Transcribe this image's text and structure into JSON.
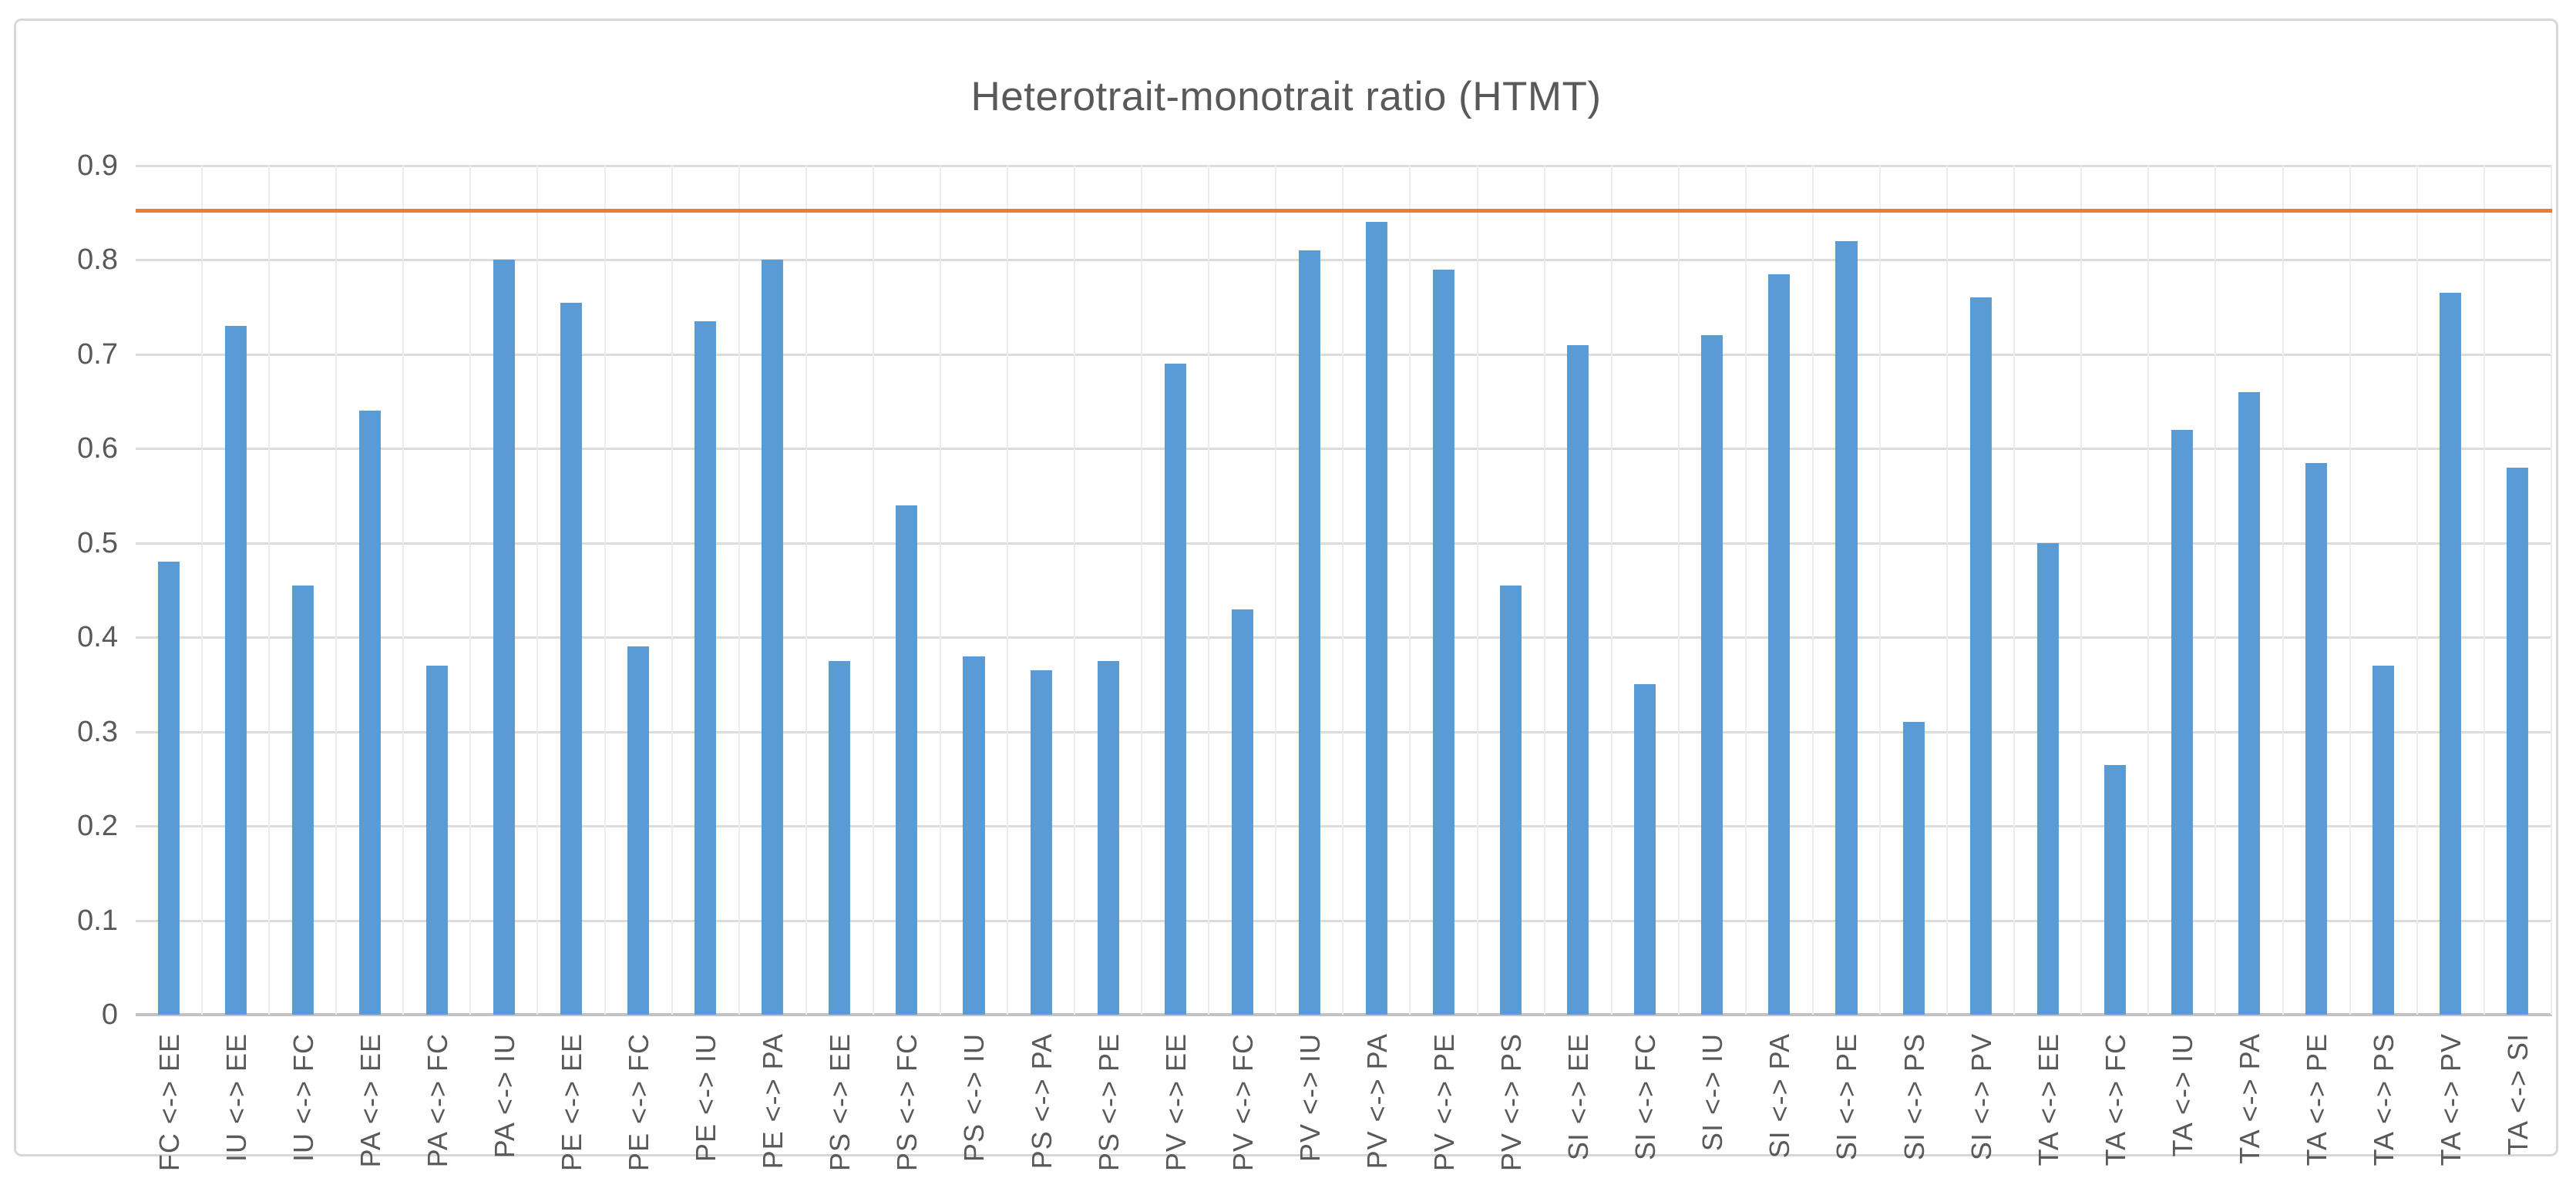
{
  "chart_data": {
    "type": "bar",
    "title": "Heterotrait-monotrait ratio (HTMT)",
    "categories": [
      "FC <-> EE",
      "IU <-> EE",
      "IU <-> FC",
      "PA <-> EE",
      "PA <-> FC",
      "PA <-> IU",
      "PE <-> EE",
      "PE <-> FC",
      "PE <-> IU",
      "PE <-> PA",
      "PS <-> EE",
      "PS <-> FC",
      "PS <-> IU",
      "PS <-> PA",
      "PS <-> PE",
      "PV <-> EE",
      "PV <-> FC",
      "PV <-> IU",
      "PV <-> PA",
      "PV <-> PE",
      "PV <-> PS",
      "SI <-> EE",
      "SI <-> FC",
      "SI <-> IU",
      "SI <-> PA",
      "SI <-> PE",
      "SI <-> PS",
      "SI <-> PV",
      "TA <-> EE",
      "TA <-> FC",
      "TA <-> IU",
      "TA <-> PA",
      "TA <-> PE",
      "TA <-> PS",
      "TA <-> PV",
      "TA <-> SI"
    ],
    "values": [
      0.48,
      0.73,
      0.455,
      0.64,
      0.37,
      0.8,
      0.755,
      0.39,
      0.735,
      0.8,
      0.375,
      0.54,
      0.38,
      0.365,
      0.375,
      0.69,
      0.43,
      0.81,
      0.84,
      0.79,
      0.455,
      0.71,
      0.35,
      0.72,
      0.785,
      0.82,
      0.31,
      0.76,
      0.5,
      0.265,
      0.62,
      0.66,
      0.585,
      0.37,
      0.765,
      0.58
    ],
    "y_ticks": [
      "0.9",
      "0.8",
      "0.7",
      "0.6",
      "0.5",
      "0.4",
      "0.3",
      "0.2",
      "0.1",
      "0"
    ],
    "ylim": [
      0,
      0.9
    ],
    "reference_line": 0.85,
    "bar_color": "#5B9BD5",
    "reference_color": "#ED7D31",
    "gridline_color": "#DCDCDC",
    "xlabel": "",
    "ylabel": "",
    "legend_position": "none",
    "grid": "horizontal and faint vertical category gridlines"
  }
}
